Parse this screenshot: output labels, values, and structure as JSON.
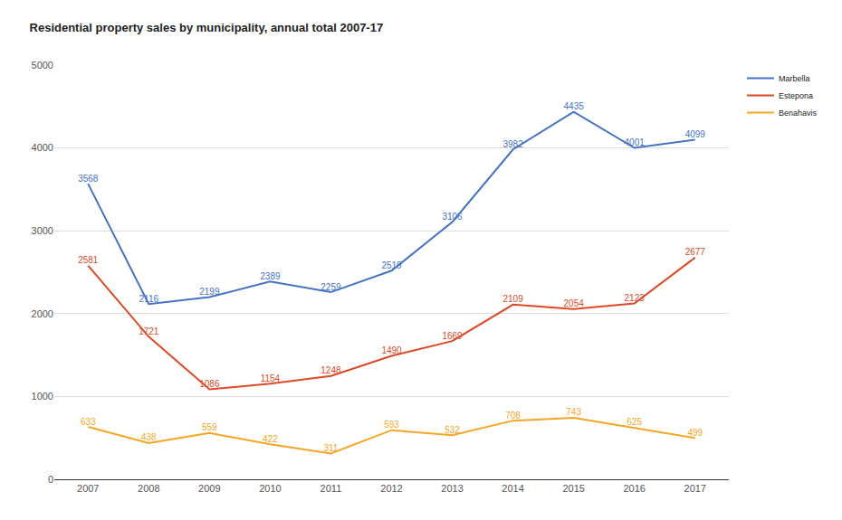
{
  "chart_data": {
    "type": "line",
    "title": "Residential property sales by municipality, annual total 2007-17",
    "categories": [
      "2007",
      "2008",
      "2009",
      "2010",
      "2011",
      "2012",
      "2013",
      "2014",
      "2015",
      "2016",
      "2017"
    ],
    "series": [
      {
        "name": "Marbella",
        "color": "#4472c4",
        "values": [
          3568,
          2116,
          2199,
          2389,
          2259,
          2519,
          3106,
          3982,
          4435,
          4001,
          4099
        ]
      },
      {
        "name": "Estepona",
        "color": "#db4a26",
        "values": [
          2581,
          1721,
          1086,
          1154,
          1248,
          1490,
          1669,
          2109,
          2054,
          2123,
          2677
        ]
      },
      {
        "name": "Benahavis",
        "color": "#f5a524",
        "values": [
          633,
          438,
          559,
          422,
          311,
          593,
          532,
          708,
          743,
          625,
          499
        ]
      }
    ],
    "ylim": [
      0,
      5000
    ],
    "yticks": [
      0,
      1000,
      2000,
      3000,
      4000,
      5000
    ],
    "grid": true,
    "legend": "top right",
    "data_labels": true
  }
}
